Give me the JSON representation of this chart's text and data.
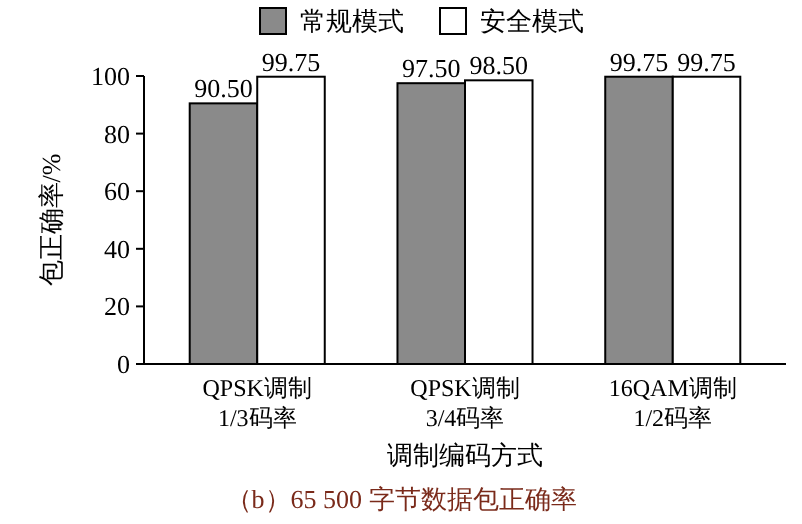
{
  "chart_data": {
    "type": "bar",
    "title": "（b）65 500 字节数据包正确率",
    "xlabel": "调制编码方式",
    "ylabel": "包正确率/%",
    "categories": [
      "QPSK调制\n1/3码率",
      "QPSK调制\n3/4码率",
      "16QAM调制\n1/2码率"
    ],
    "series": [
      {
        "name": "常规模式",
        "color": "#8a8a8a",
        "values": [
          90.5,
          97.5,
          99.75
        ],
        "value_labels": [
          "90.50",
          "97.50",
          "99.75"
        ]
      },
      {
        "name": "安全模式",
        "color": "#ffffff",
        "values": [
          99.75,
          98.5,
          99.75
        ],
        "value_labels": [
          "99.75",
          "98.50",
          "99.75"
        ]
      }
    ],
    "ylim": [
      0,
      100
    ],
    "yticks": [
      0,
      20,
      40,
      60,
      80,
      100
    ],
    "legend": "top",
    "grid": false
  }
}
